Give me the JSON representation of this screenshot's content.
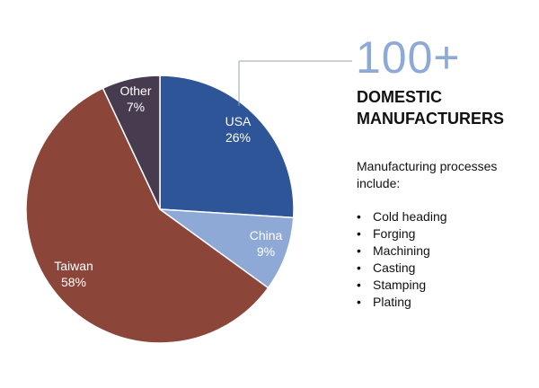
{
  "chart_data": {
    "type": "pie",
    "title": "",
    "slices": [
      {
        "name": "USA",
        "label": "26%",
        "value": 26,
        "color": "#2e5597"
      },
      {
        "name": "China",
        "label": "9%",
        "value": 9,
        "color": "#8ea9d6"
      },
      {
        "name": "Taiwan",
        "label": "58%",
        "value": 58,
        "color": "#8b4539"
      },
      {
        "name": "Other",
        "label": "7%",
        "value": 7,
        "color": "#473c4f"
      }
    ],
    "start_angle_deg": 0,
    "direction": "clockwise"
  },
  "stat": {
    "number": "100+",
    "heading_line1": "DOMESTIC",
    "heading_line2": "MANUFACTURERS"
  },
  "processes": {
    "intro": "Manufacturing processes include:",
    "bullet": "•",
    "items": [
      "Cold heading",
      "Forging",
      "Machining",
      "Casting",
      "Stamping",
      "Plating"
    ]
  },
  "colors": {
    "accent": "#8ea9d6",
    "connector": "#9aa3ad"
  }
}
